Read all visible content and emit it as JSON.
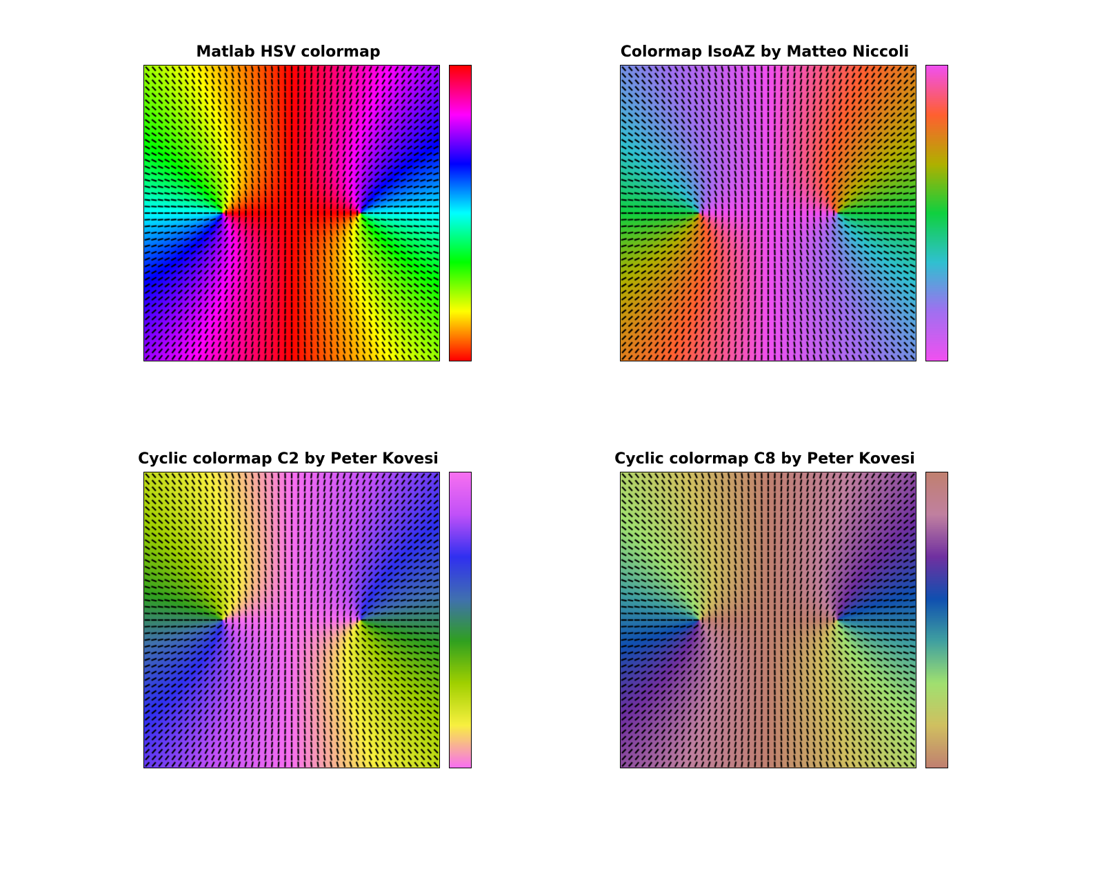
{
  "figure": {
    "panels": [
      {
        "title": "Matlab HSV colormap",
        "colormap": "hsv"
      },
      {
        "title": "Colormap IsoAZ by Matteo Niccoli",
        "colormap": "isoaz"
      },
      {
        "title": "Cyclic colormap C2 by Peter Kovesi",
        "colormap": "c2"
      },
      {
        "title": "Cyclic colormap C8 by Peter Kovesi",
        "colormap": "c8"
      }
    ]
  },
  "colormaps": {
    "hsv": [
      "#ff0000",
      "#ffff00",
      "#00ff00",
      "#00ffff",
      "#0000ff",
      "#ff00ff",
      "#ff0000"
    ],
    "isoaz": [
      "#f050f0",
      "#a070f0",
      "#30c0d0",
      "#10d040",
      "#b0b000",
      "#ff6030",
      "#f050f0"
    ],
    "c2": [
      "#f870f0",
      "#f8f040",
      "#a0d000",
      "#30a020",
      "#4070b0",
      "#3030f0",
      "#c050f8",
      "#f870f0"
    ],
    "c8": [
      "#c08070",
      "#d0c060",
      "#a0e070",
      "#40a0a0",
      "#1050b0",
      "#7030a0",
      "#c080a0",
      "#c08070"
    ]
  },
  "chart_data": [
    {
      "type": "heatmap",
      "title": "Matlab HSV colormap",
      "colormap": "hsv",
      "grid": 45,
      "singularities": [
        [
          -0.47,
          0.0
        ],
        [
          0.47,
          0.0
        ]
      ],
      "xlim": [
        -1,
        1
      ],
      "ylim": [
        -1,
        1
      ]
    },
    {
      "type": "heatmap",
      "title": "Colormap IsoAZ by Matteo Niccoli",
      "colormap": "isoaz",
      "grid": 45,
      "singularities": [
        [
          -0.47,
          0.0
        ],
        [
          0.47,
          0.0
        ]
      ],
      "xlim": [
        -1,
        1
      ],
      "ylim": [
        -1,
        1
      ]
    },
    {
      "type": "heatmap",
      "title": "Cyclic colormap C2 by Peter Kovesi",
      "colormap": "c2",
      "grid": 45,
      "singularities": [
        [
          -0.47,
          0.0
        ],
        [
          0.47,
          0.0
        ]
      ],
      "xlim": [
        -1,
        1
      ],
      "ylim": [
        -1,
        1
      ]
    },
    {
      "type": "heatmap",
      "title": "Cyclic colormap C8 by Peter Kovesi",
      "colormap": "c8",
      "grid": 45,
      "singularities": [
        [
          -0.47,
          0.0
        ],
        [
          0.47,
          0.0
        ]
      ],
      "xlim": [
        -1,
        1
      ],
      "ylim": [
        -1,
        1
      ]
    }
  ]
}
